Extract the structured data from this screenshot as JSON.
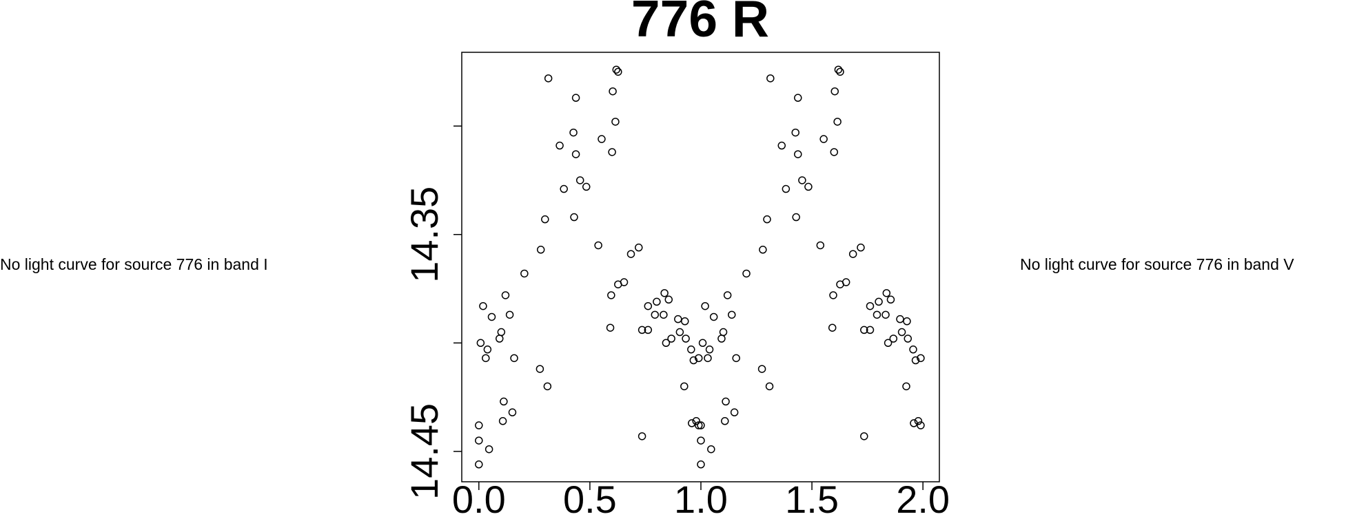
{
  "chart_data": {
    "type": "scatter",
    "title": "776 R",
    "notes": [
      "No light curve for source 776 in band I",
      "No light curve for source 776 in band V"
    ],
    "xlim": [
      -0.077,
      2.074
    ],
    "xticks": [
      {
        "value": 0,
        "label": "0.0"
      },
      0.5,
      {
        "value": 1,
        "label": "1.0"
      },
      1.5,
      {
        "value": 2,
        "label": "2.0"
      }
    ],
    "ylim": [
      14.464,
      14.266
    ],
    "yticks": [
      14.35,
      14.45
    ],
    "yticks_minor": [
      14.3,
      14.4
    ],
    "color": "#000000",
    "x": [
      0.0,
      0.0,
      0.0,
      0.008,
      0.019,
      0.031,
      0.039,
      0.046,
      0.058,
      0.093,
      0.101,
      0.108,
      0.112,
      0.12,
      0.139,
      0.151,
      0.159,
      0.205,
      0.275,
      0.279,
      0.298,
      0.309,
      0.313,
      0.364,
      0.383,
      0.426,
      0.429,
      0.437,
      0.437,
      0.456,
      0.484,
      0.538,
      0.553,
      0.592,
      0.596,
      0.6,
      0.603,
      0.615,
      0.619,
      0.627,
      0.627,
      0.654,
      0.685,
      0.72,
      0.735,
      0.735,
      0.762,
      0.762,
      0.793,
      0.801,
      0.832,
      0.836,
      0.843,
      0.855,
      0.867,
      0.897,
      0.905,
      0.925,
      0.928,
      0.932,
      0.956,
      0.959,
      0.967,
      0.979,
      0.99,
      0.99,
      1.0,
      1.0,
      1.0,
      1.008,
      1.019,
      1.031,
      1.039,
      1.046,
      1.058,
      1.093,
      1.101,
      1.108,
      1.112,
      1.12,
      1.139,
      1.151,
      1.159,
      1.205,
      1.275,
      1.279,
      1.298,
      1.309,
      1.313,
      1.364,
      1.383,
      1.426,
      1.429,
      1.437,
      1.437,
      1.456,
      1.484,
      1.538,
      1.553,
      1.592,
      1.596,
      1.6,
      1.603,
      1.615,
      1.619,
      1.627,
      1.627,
      1.654,
      1.685,
      1.72,
      1.735,
      1.735,
      1.762,
      1.762,
      1.793,
      1.801,
      1.832,
      1.836,
      1.843,
      1.855,
      1.867,
      1.897,
      1.905,
      1.925,
      1.928,
      1.932,
      1.956,
      1.959,
      1.967,
      1.979,
      1.99,
      1.99
    ],
    "values": [
      14.438,
      14.445,
      14.456,
      14.4,
      14.383,
      14.407,
      14.403,
      14.449,
      14.388,
      14.398,
      14.395,
      14.436,
      14.427,
      14.378,
      14.387,
      14.432,
      14.407,
      14.368,
      14.412,
      14.357,
      14.343,
      14.42,
      14.278,
      14.309,
      14.329,
      14.303,
      14.342,
      14.287,
      14.313,
      14.325,
      14.328,
      14.355,
      14.306,
      14.393,
      14.378,
      14.312,
      14.284,
      14.298,
      14.274,
      14.275,
      14.373,
      14.372,
      14.359,
      14.356,
      14.394,
      14.443,
      14.383,
      14.394,
      14.387,
      14.381,
      14.387,
      14.377,
      14.4,
      14.38,
      14.398,
      14.389,
      14.395,
      14.42,
      14.39,
      14.398,
      14.403,
      14.437,
      14.408,
      14.436,
      14.407,
      14.438,
      14.438,
      14.445,
      14.456,
      14.4,
      14.383,
      14.407,
      14.403,
      14.449,
      14.388,
      14.398,
      14.395,
      14.436,
      14.427,
      14.378,
      14.387,
      14.432,
      14.407,
      14.368,
      14.412,
      14.357,
      14.343,
      14.42,
      14.278,
      14.309,
      14.329,
      14.303,
      14.342,
      14.287,
      14.313,
      14.325,
      14.328,
      14.355,
      14.306,
      14.393,
      14.378,
      14.312,
      14.284,
      14.298,
      14.274,
      14.275,
      14.373,
      14.372,
      14.359,
      14.356,
      14.394,
      14.443,
      14.383,
      14.394,
      14.387,
      14.381,
      14.387,
      14.377,
      14.4,
      14.38,
      14.398,
      14.389,
      14.395,
      14.42,
      14.39,
      14.398,
      14.403,
      14.437,
      14.408,
      14.436,
      14.407,
      14.438
    ]
  }
}
